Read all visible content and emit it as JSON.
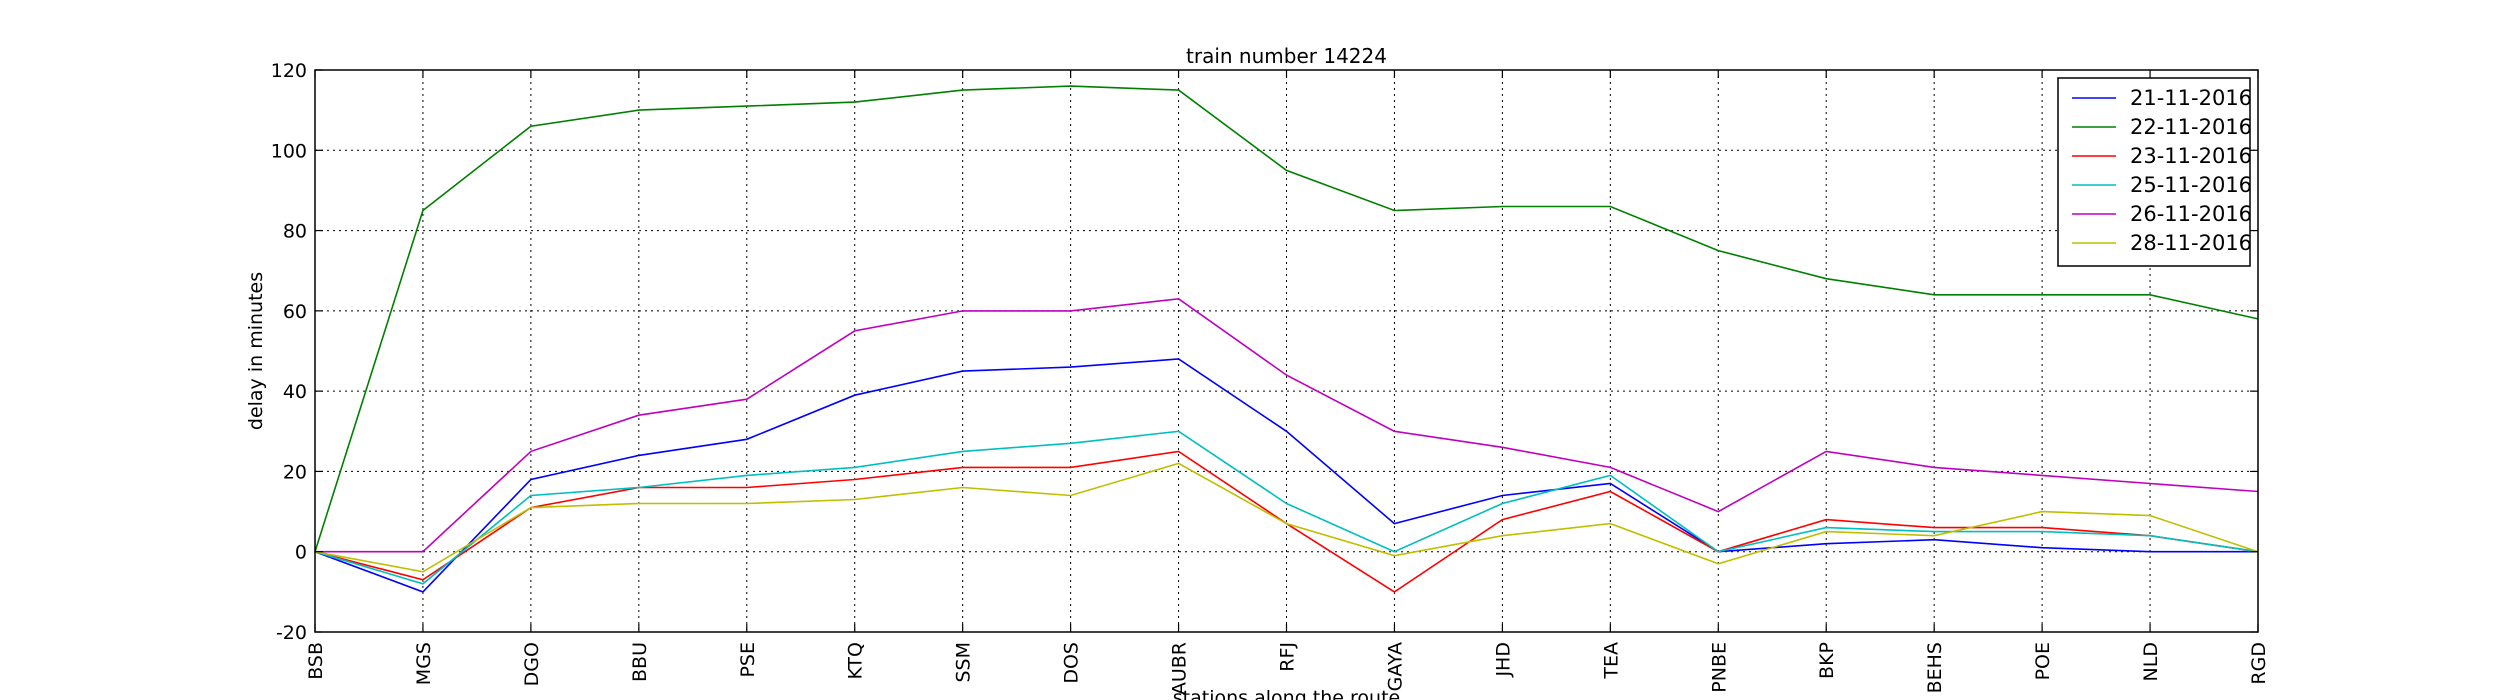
{
  "chart_data": {
    "type": "line",
    "title": "train number 14224",
    "xlabel": "stations along the route",
    "ylabel": "delay in minutes",
    "categories": [
      "BSB",
      "MGS",
      "DGO",
      "BBU",
      "PSE",
      "KTQ",
      "SSM",
      "DOS",
      "AUBR",
      "RFJ",
      "GAYA",
      "JHD",
      "TEA",
      "PNBE",
      "BKP",
      "BEHS",
      "POE",
      "NLD",
      "RGD"
    ],
    "ylim": [
      -20,
      120
    ],
    "yticks": [
      -20,
      0,
      20,
      40,
      60,
      80,
      100,
      120
    ],
    "grid": true,
    "legend_position": "top-right",
    "series": [
      {
        "name": "21-11-2016",
        "color": "#0000ff",
        "values": [
          0,
          -10,
          18,
          24,
          28,
          39,
          45,
          46,
          48,
          30,
          7,
          14,
          17,
          0,
          2,
          3,
          1,
          0,
          0
        ]
      },
      {
        "name": "22-11-2016",
        "color": "#008000",
        "values": [
          0,
          85,
          106,
          110,
          111,
          112,
          115,
          116,
          115,
          95,
          85,
          86,
          86,
          75,
          68,
          64,
          64,
          64,
          58
        ]
      },
      {
        "name": "23-11-2016",
        "color": "#ff0000",
        "values": [
          0,
          -7,
          11,
          16,
          16,
          18,
          21,
          21,
          25,
          7,
          -10,
          8,
          15,
          0,
          8,
          6,
          6,
          4,
          0
        ]
      },
      {
        "name": "25-11-2016",
        "color": "#00bfbf",
        "values": [
          0,
          -8,
          14,
          16,
          19,
          21,
          25,
          27,
          30,
          12,
          0,
          12,
          19,
          0,
          6,
          5,
          5,
          4,
          0
        ]
      },
      {
        "name": "26-11-2016",
        "color": "#bf00bf",
        "values": [
          0,
          0,
          25,
          34,
          38,
          55,
          60,
          60,
          63,
          44,
          30,
          26,
          21,
          10,
          25,
          21,
          19,
          17,
          15
        ]
      },
      {
        "name": "28-11-2016",
        "color": "#bfbf00",
        "values": [
          0,
          -5,
          11,
          12,
          12,
          13,
          16,
          14,
          22,
          7,
          -1,
          4,
          7,
          -3,
          5,
          4,
          10,
          9,
          0
        ]
      }
    ]
  }
}
